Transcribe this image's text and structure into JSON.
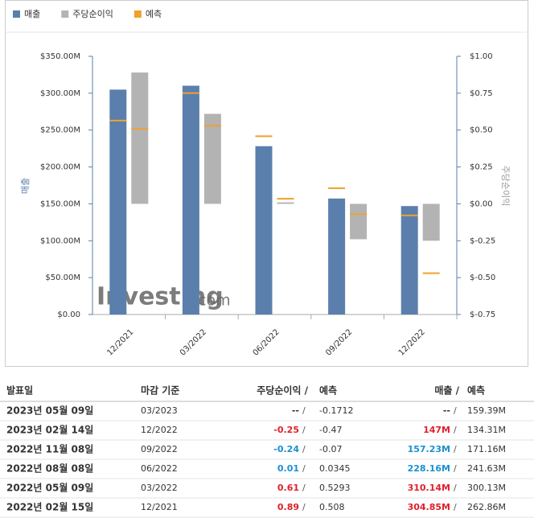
{
  "chart_data": {
    "type": "bar",
    "categories": [
      "12/2021",
      "03/2022",
      "06/2022",
      "09/2022",
      "12/2022"
    ],
    "series": [
      {
        "name": "매출",
        "color": "#5b7fad",
        "axis": "y",
        "values": [
          304850000,
          310140000,
          228160000,
          157230000,
          147000000
        ],
        "forecast": [
          262860000,
          300130000,
          241630000,
          171160000,
          134310000
        ]
      },
      {
        "name": "주당순이익",
        "color": "#b3b3b3",
        "axis": "y2",
        "values": [
          0.89,
          0.61,
          0.01,
          -0.24,
          -0.25
        ],
        "forecast": [
          0.508,
          0.5293,
          0.0345,
          -0.07,
          -0.47
        ]
      }
    ],
    "forecast_legend": {
      "name": "예측",
      "color": "#f0a030"
    },
    "ylabel": "매출",
    "y2label": "주당순이익",
    "ylim": [
      0,
      350000000
    ],
    "yticks": [
      {
        "value": 0,
        "label": "$0.00"
      },
      {
        "value": 50000000,
        "label": "$50.00M"
      },
      {
        "value": 100000000,
        "label": "$100.00M"
      },
      {
        "value": 150000000,
        "label": "$150.00M"
      },
      {
        "value": 200000000,
        "label": "$200.00M"
      },
      {
        "value": 250000000,
        "label": "$250.00M"
      },
      {
        "value": 300000000,
        "label": "$300.00M"
      },
      {
        "value": 350000000,
        "label": "$350.00M"
      }
    ],
    "y2lim": [
      -0.75,
      1.0
    ],
    "y2ticks": [
      {
        "value": -0.75,
        "label": "$-0.75"
      },
      {
        "value": -0.5,
        "label": "$-0.50"
      },
      {
        "value": -0.25,
        "label": "$-0.25"
      },
      {
        "value": 0,
        "label": "$0.00"
      },
      {
        "value": 0.25,
        "label": "$0.25"
      },
      {
        "value": 0.5,
        "label": "$0.50"
      },
      {
        "value": 0.75,
        "label": "$0.75"
      },
      {
        "value": 1.0,
        "label": "$1.00"
      }
    ],
    "watermark": [
      "Investing",
      ".com"
    ]
  },
  "table": {
    "header": [
      "발표일",
      "마감 기준",
      "주당순이익 /",
      "예측",
      "매출 /",
      "예측"
    ],
    "separator": "/",
    "rows": [
      [
        "2023년 05월 09일",
        "03/2023",
        "--",
        "-0.1712",
        "--",
        "159.39M"
      ],
      [
        "2023년 02월 14일",
        "12/2022",
        "-0.25",
        "-0.47",
        "147M",
        "134.31M"
      ],
      [
        "2022년 11월 08일",
        "09/2022",
        "-0.24",
        "-0.07",
        "157.23M",
        "171.16M"
      ],
      [
        "2022년 08월 08일",
        "06/2022",
        "0.01",
        "0.0345",
        "228.16M",
        "241.63M"
      ],
      [
        "2022년 05월 09일",
        "03/2022",
        "0.61",
        "0.5293",
        "310.14M",
        "300.13M"
      ],
      [
        "2022년 02월 15일",
        "12/2021",
        "0.89",
        "0.508",
        "304.85M",
        "262.86M"
      ]
    ],
    "eps_colors": [
      "#333333",
      "#e0202a",
      "#1a8fd0",
      "#1a8fd0",
      "#e0202a",
      "#e0202a"
    ],
    "revenue_colors": [
      "#333333",
      "#e0202a",
      "#1a8fd0",
      "#1a8fd0",
      "#e0202a",
      "#e0202a"
    ]
  }
}
